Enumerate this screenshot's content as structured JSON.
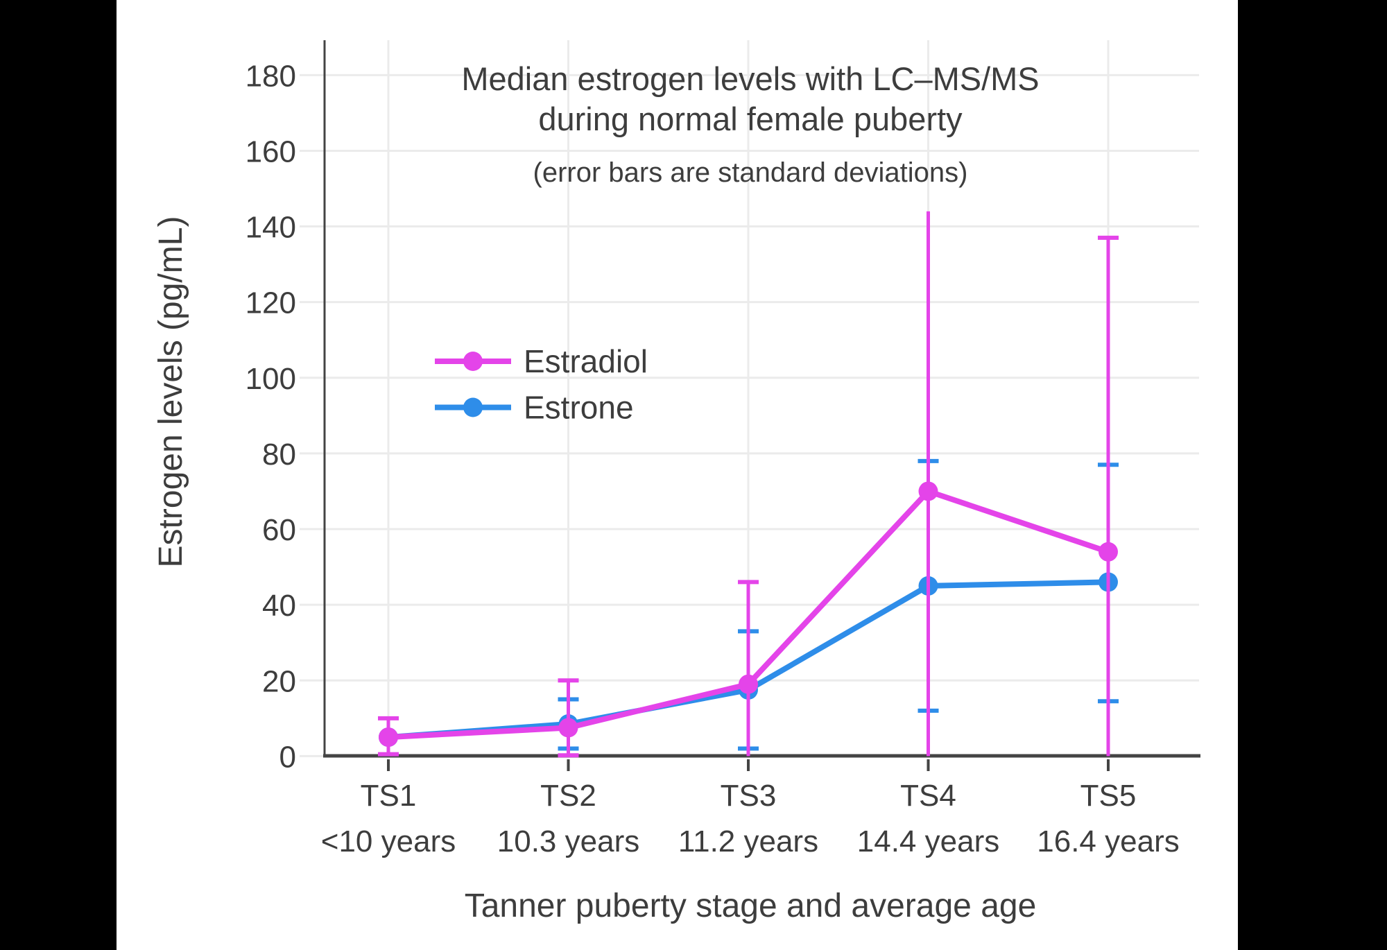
{
  "window": {
    "background": "#000000",
    "canvas_background": "#FFFFFF"
  },
  "chart_data": {
    "type": "line",
    "title": "Median estrogen levels with LC–MS/MS",
    "title_line2": "during normal female puberty",
    "subtitle": "(error bars are standard deviations)",
    "xlabel": "Tanner puberty stage and average age",
    "ylabel": "Estrogen levels (pg/mL)",
    "categories": [
      "TS1",
      "TS2",
      "TS3",
      "TS4",
      "TS5"
    ],
    "category_ages": [
      "<10 years",
      "10.3 years",
      "11.2 years",
      "14.4 years",
      "16.4 years"
    ],
    "ylim": [
      0,
      190
    ],
    "yticks": [
      0,
      20,
      40,
      60,
      80,
      100,
      120,
      140,
      160,
      180
    ],
    "grid": true,
    "legend_position": "inside-upper-left",
    "colors": {
      "grid": "#EBEBEB",
      "axis": "#444444",
      "text": "#3D3D3D"
    },
    "series": [
      {
        "name": "Estrone",
        "color": "#2E8DE9",
        "values": [
          5,
          8.5,
          17.5,
          45,
          46
        ],
        "error_high": [
          null,
          15,
          33,
          78,
          77
        ],
        "error_low": [
          null,
          2,
          2,
          12,
          14.5
        ],
        "high_cap": [
          false,
          true,
          true,
          true,
          true
        ],
        "low_cap": [
          false,
          true,
          true,
          true,
          true
        ]
      },
      {
        "name": "Estradiol",
        "color": "#E444E9",
        "values": [
          5,
          7.5,
          19,
          70,
          54
        ],
        "error_high": [
          10,
          20,
          46,
          144,
          137
        ],
        "error_low": [
          0.5,
          0.2,
          0,
          0,
          0
        ],
        "high_cap": [
          true,
          true,
          true,
          false,
          true
        ],
        "low_cap": [
          true,
          true,
          false,
          false,
          false
        ]
      }
    ],
    "legend_order": [
      "Estradiol",
      "Estrone"
    ]
  }
}
